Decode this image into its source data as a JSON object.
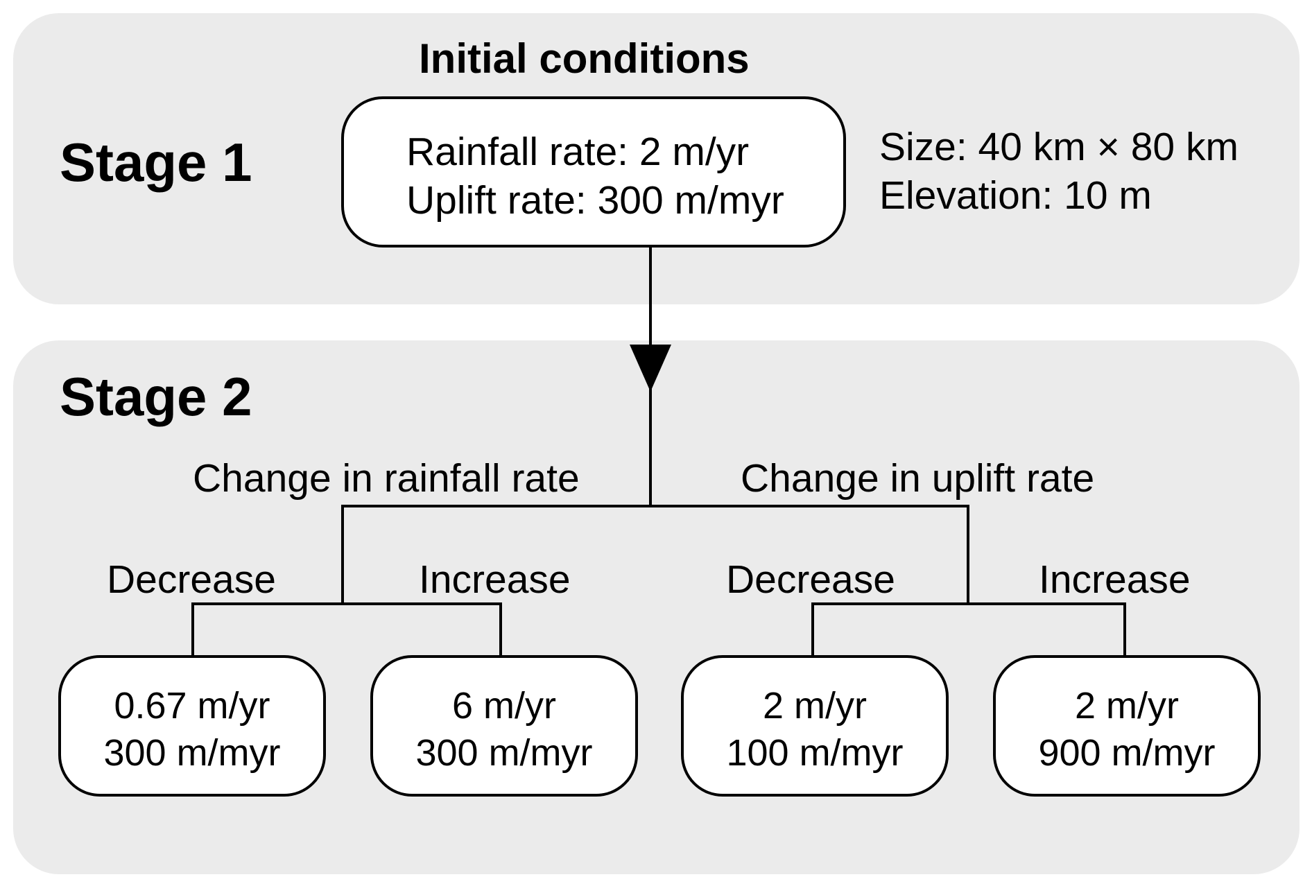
{
  "stage1": {
    "label": "Stage 1",
    "heading": "Initial conditions",
    "box": {
      "line1": "Rainfall rate: 2 m/yr",
      "line2": "Uplift rate: 300 m/myr"
    },
    "side": {
      "line1": "Size: 40 km × 80 km",
      "line2": "Elevation: 10 m"
    }
  },
  "stage2": {
    "label": "Stage 2",
    "branches": [
      {
        "label": "Change in rainfall rate",
        "options": [
          {
            "label": "Decrease",
            "line1": "0.67 m/yr",
            "line2": "300 m/myr"
          },
          {
            "label": "Increase",
            "line1": "6 m/yr",
            "line2": "300 m/myr"
          }
        ]
      },
      {
        "label": "Change in uplift rate",
        "options": [
          {
            "label": "Decrease",
            "line1": "2 m/yr",
            "line2": "100 m/myr"
          },
          {
            "label": "Increase",
            "line1": "2 m/yr",
            "line2": "900 m/myr"
          }
        ]
      }
    ]
  },
  "colors": {
    "panel": "#ebebeb",
    "box": "#ffffff",
    "line": "#000000"
  }
}
